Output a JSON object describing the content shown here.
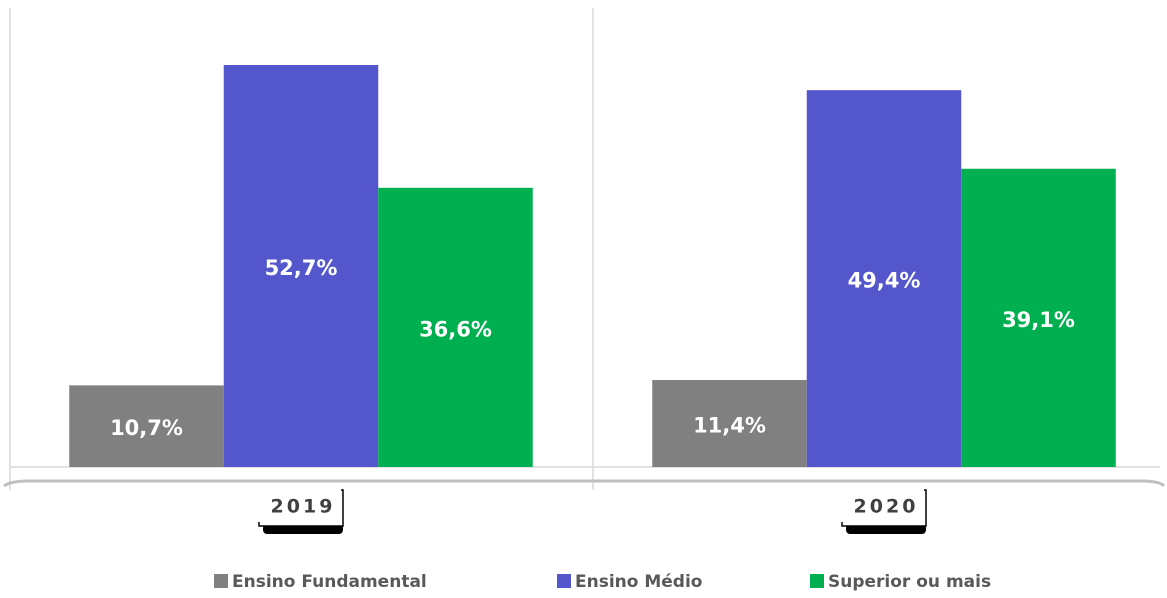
{
  "chart_data": {
    "type": "bar",
    "categories": [
      "2019",
      "2020"
    ],
    "series": [
      {
        "name": "Ensino Fundamental",
        "color": "#808080",
        "values": [
          10.7,
          11.4
        ],
        "value_labels": [
          "10,7%",
          "11,4%"
        ]
      },
      {
        "name": "Ensino Médio",
        "color": "#5457cc",
        "values": [
          52.7,
          49.4
        ],
        "value_labels": [
          "52,7%",
          "49,4%"
        ]
      },
      {
        "name": "Superior ou mais",
        "color": "#00b050",
        "values": [
          36.6,
          39.1
        ],
        "value_labels": [
          "36,6%",
          "39,1%"
        ]
      }
    ]
  }
}
